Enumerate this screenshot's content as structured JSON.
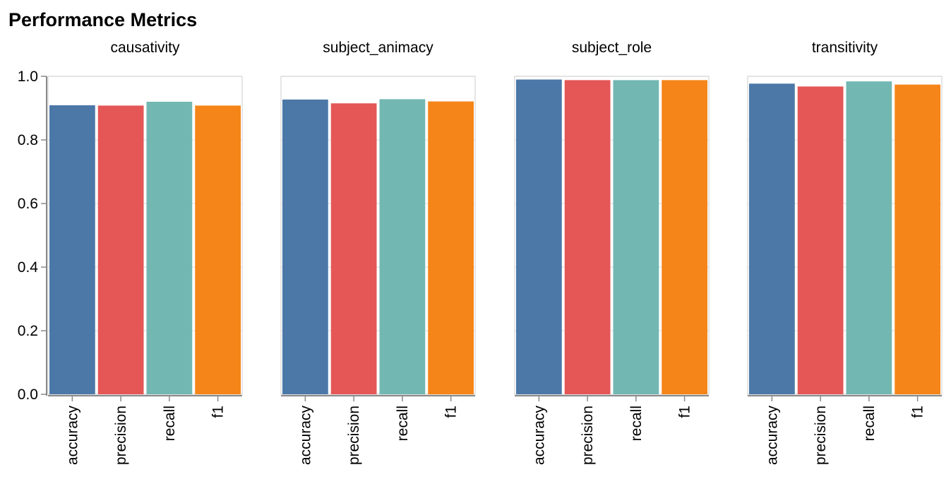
{
  "chart_data": {
    "type": "bar",
    "title": "Performance Metrics",
    "facet_field": "task",
    "categories": [
      "accuracy",
      "precision",
      "recall",
      "f1"
    ],
    "colors": {
      "accuracy": "#4c78a8",
      "precision": "#e45756",
      "recall": "#72b7b2",
      "f1": "#f58518"
    },
    "ylim": [
      0,
      1.0
    ],
    "yticks": [
      "0.0",
      "0.2",
      "0.4",
      "0.6",
      "0.8",
      "1.0"
    ],
    "grid": true,
    "legend": "none",
    "facets": [
      {
        "name": "causativity",
        "values": [
          0.909,
          0.908,
          0.92,
          0.908
        ]
      },
      {
        "name": "subject_animacy",
        "values": [
          0.927,
          0.915,
          0.928,
          0.921
        ]
      },
      {
        "name": "subject_role",
        "values": [
          0.99,
          0.988,
          0.988,
          0.988
        ]
      },
      {
        "name": "transitivity",
        "values": [
          0.977,
          0.968,
          0.984,
          0.974
        ]
      }
    ]
  }
}
